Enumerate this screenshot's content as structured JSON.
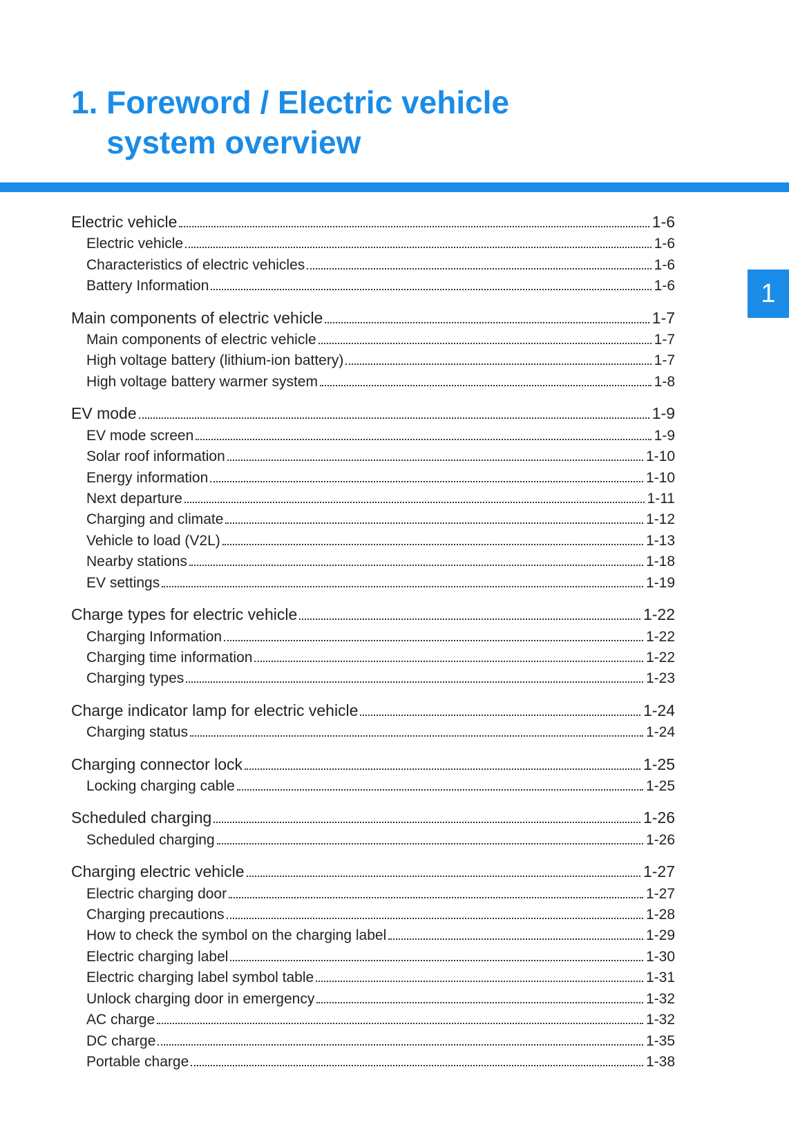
{
  "colors": {
    "accent": "#1a8ce8",
    "text": "#222222",
    "background": "#ffffff"
  },
  "header": {
    "chapter_number": "1.",
    "title_line1": "Foreword / Electric vehicle",
    "title_line2": "system overview",
    "side_tab": "1"
  },
  "toc": [
    {
      "title": "Electric vehicle",
      "page": "1-6",
      "subs": [
        {
          "title": "Electric vehicle",
          "page": "1-6"
        },
        {
          "title": "Characteristics of electric vehicles",
          "page": "1-6"
        },
        {
          "title": "Battery Information",
          "page": "1-6"
        }
      ]
    },
    {
      "title": "Main components of electric vehicle",
      "page": "1-7",
      "subs": [
        {
          "title": "Main components of electric vehicle",
          "page": "1-7"
        },
        {
          "title": "High voltage battery (lithium-ion battery)",
          "page": "1-7"
        },
        {
          "title": "High voltage battery warmer system",
          "page": "1-8"
        }
      ]
    },
    {
      "title": "EV mode",
      "page": "1-9",
      "subs": [
        {
          "title": "EV mode screen",
          "page": "1-9"
        },
        {
          "title": "Solar roof information",
          "page": "1-10"
        },
        {
          "title": "Energy information",
          "page": "1-10"
        },
        {
          "title": "Next departure",
          "page": "1-11"
        },
        {
          "title": "Charging and climate",
          "page": "1-12"
        },
        {
          "title": "Vehicle to load (V2L)",
          "page": "1-13"
        },
        {
          "title": "Nearby stations",
          "page": "1-18"
        },
        {
          "title": "EV settings",
          "page": "1-19"
        }
      ]
    },
    {
      "title": "Charge types for electric vehicle",
      "page": "1-22",
      "subs": [
        {
          "title": "Charging Information",
          "page": "1-22"
        },
        {
          "title": "Charging time information",
          "page": "1-22"
        },
        {
          "title": "Charging types",
          "page": "1-23"
        }
      ]
    },
    {
      "title": "Charge indicator lamp for electric vehicle",
      "page": "1-24",
      "subs": [
        {
          "title": "Charging status",
          "page": "1-24"
        }
      ]
    },
    {
      "title": "Charging connector lock",
      "page": "1-25",
      "subs": [
        {
          "title": "Locking charging cable",
          "page": "1-25"
        }
      ]
    },
    {
      "title": "Scheduled charging",
      "page": "1-26",
      "subs": [
        {
          "title": "Scheduled charging",
          "page": "1-26"
        }
      ]
    },
    {
      "title": "Charging electric vehicle",
      "page": "1-27",
      "subs": [
        {
          "title": "Electric charging door",
          "page": "1-27"
        },
        {
          "title": "Charging precautions",
          "page": "1-28"
        },
        {
          "title": "How to check the symbol on the charging label",
          "page": "1-29"
        },
        {
          "title": "Electric charging label",
          "page": "1-30"
        },
        {
          "title": "Electric charging label symbol table",
          "page": "1-31"
        },
        {
          "title": "Unlock charging door in emergency",
          "page": "1-32"
        },
        {
          "title": "AC charge",
          "page": "1-32"
        },
        {
          "title": "DC charge",
          "page": "1-35"
        },
        {
          "title": "Portable charge",
          "page": "1-38"
        }
      ]
    }
  ]
}
